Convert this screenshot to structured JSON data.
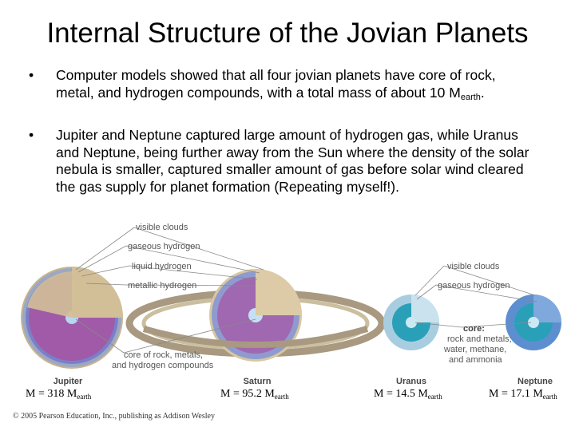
{
  "title": "Internal Structure of the Jovian Planets",
  "bullets": [
    {
      "text": "Computer models showed that all four jovian planets have core of rock, metal, and hydrogen compounds, with a total mass of about 10 M",
      "sub": "earth",
      "tail": "."
    },
    {
      "text": "Jupiter and Neptune captured large amount of hydrogen gas, while Uranus and Neptune, being further away from the Sun where the density of the solar nebula is smaller, captured smaller amount of gas before solar wind cleared the gas supply for planet formation (Repeating myself!)."
    }
  ],
  "figure": {
    "left_labels": [
      "visible clouds",
      "gaseous hydrogen",
      "liquid hydrogen",
      "metallic hydrogen"
    ],
    "core_label": [
      "core of rock, metals,",
      "and hydrogen compounds"
    ],
    "right_labels": [
      "visible clouds",
      "gaseous hydrogen"
    ],
    "core_heading": "core:",
    "core_text": [
      "rock and metals;",
      "water, methane,",
      "and ammonia"
    ],
    "planets": [
      "Jupiter",
      "Saturn",
      "Uranus",
      "Neptune"
    ]
  },
  "masses": [
    {
      "text": "M = 318 M",
      "sub": "earth"
    },
    {
      "text": "M = 95.2 M",
      "sub": "earth"
    },
    {
      "text": "M = 14.5 M",
      "sub": "earth"
    },
    {
      "text": "M = 17.1 M",
      "sub": "earth"
    }
  ],
  "copyright": "© 2005 Pearson Education, Inc., publishing as Addison Wesley"
}
